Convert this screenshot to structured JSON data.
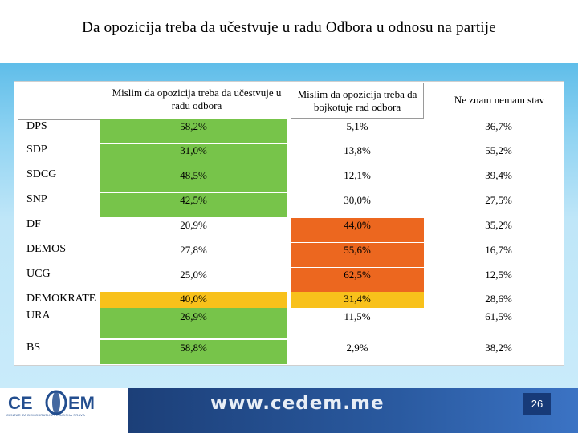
{
  "slide": {
    "title": "Da opozicija treba da učestvuje u radu Odbora u odnosu na partije",
    "page_number": "26"
  },
  "table": {
    "headers": [
      "Mislim da opozicija treba da učestvuje u radu odbora",
      "Mislim da opozicija treba da bojkotuje rad odbora",
      "Ne znam nemam stav"
    ],
    "rows": [
      {
        "label": "DPS",
        "values": [
          "58,2%",
          "5,1%",
          "36,7%"
        ]
      },
      {
        "label": "SDP",
        "values": [
          "31,0%",
          "13,8%",
          "55,2%"
        ]
      },
      {
        "label": "SDCG",
        "values": [
          "48,5%",
          "12,1%",
          "39,4%"
        ]
      },
      {
        "label": "SNP",
        "values": [
          "42,5%",
          "30,0%",
          "27,5%"
        ]
      },
      {
        "label": "DF",
        "values": [
          "20,9%",
          "44,0%",
          "35,2%"
        ]
      },
      {
        "label": "DEMOS",
        "values": [
          "27,8%",
          "55,6%",
          "16,7%"
        ]
      },
      {
        "label": "UCG",
        "values": [
          "25,0%",
          "62,5%",
          "12,5%"
        ]
      },
      {
        "label": "DEMOKRATE",
        "values": [
          "40,0%",
          "31,4%",
          "28,6%"
        ]
      },
      {
        "label": "URA",
        "values": [
          "26,9%",
          "11,5%",
          "61,5%"
        ]
      },
      {
        "label": "BS",
        "values": [
          "58,8%",
          "2,9%",
          "38,2%"
        ]
      }
    ]
  },
  "colors": {
    "green": "#77c44a",
    "orange": "#ec671f",
    "yellow": "#f8c11b"
  },
  "footer": {
    "url": "www.cedem.me",
    "logo_text_left": "CE",
    "logo_text_right": "EM",
    "logo_subtitle": "CENTAR ZA DEMOKRATIJU I LJUDSKA PRAVA"
  }
}
